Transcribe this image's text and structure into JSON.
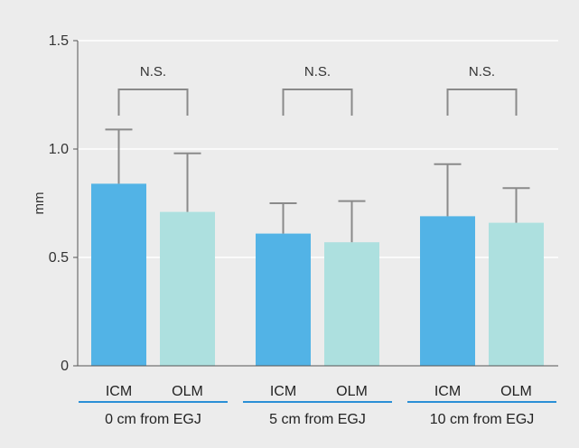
{
  "chart_data": {
    "type": "bar",
    "ylabel": "mm",
    "ylim": [
      0,
      1.5
    ],
    "yticks": [
      {
        "value": 0,
        "label": "0"
      },
      {
        "value": 0.5,
        "label": "0.5"
      },
      {
        "value": 1.0,
        "label": "1.0"
      },
      {
        "value": 1.5,
        "label": "1.5"
      }
    ],
    "grid": true,
    "groups": [
      {
        "label": "0 cm from EGJ",
        "significance": "N.S.",
        "bars": [
          {
            "category": "ICM",
            "value": 0.84,
            "error": 0.25
          },
          {
            "category": "OLM",
            "value": 0.71,
            "error": 0.27
          }
        ]
      },
      {
        "label": "5 cm from EGJ",
        "significance": "N.S.",
        "bars": [
          {
            "category": "ICM",
            "value": 0.61,
            "error": 0.14
          },
          {
            "category": "OLM",
            "value": 0.57,
            "error": 0.19
          }
        ]
      },
      {
        "label": "10 cm from EGJ",
        "significance": "N.S.",
        "bars": [
          {
            "category": "ICM",
            "value": 0.69,
            "error": 0.24
          },
          {
            "category": "OLM",
            "value": 0.66,
            "error": 0.16
          }
        ]
      }
    ],
    "colors": {
      "ICM": "#52b3e6",
      "OLM": "#ade0df",
      "background": "#ececec",
      "error_bar": "#8a8a8a",
      "group_underline": "#2a8fd6",
      "axis": "#555555",
      "grid": "#ffffff"
    }
  }
}
